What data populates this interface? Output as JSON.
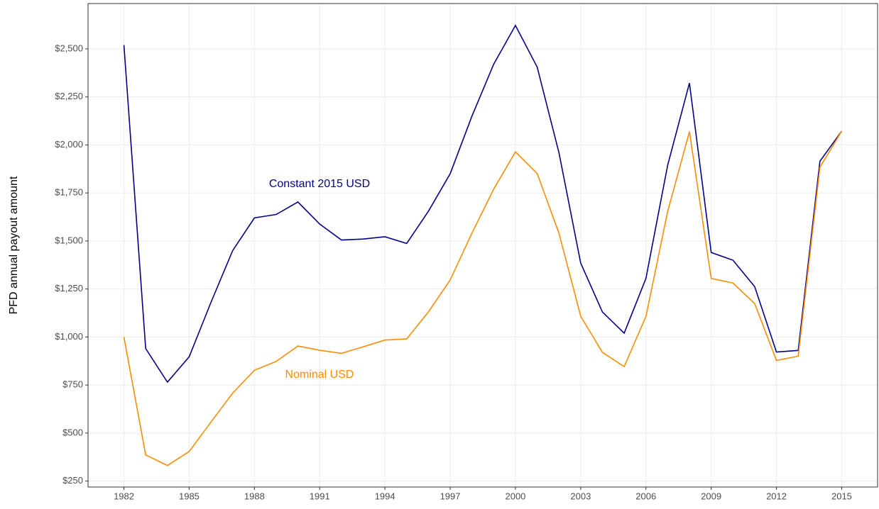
{
  "chart_data": {
    "type": "line",
    "y_label": "PFD annual payout amount",
    "x": [
      1982,
      1983,
      1984,
      1985,
      1986,
      1987,
      1988,
      1989,
      1990,
      1991,
      1992,
      1993,
      1994,
      1995,
      1996,
      1997,
      1998,
      1999,
      2000,
      2001,
      2002,
      2003,
      2004,
      2005,
      2006,
      2007,
      2008,
      2009,
      2010,
      2011,
      2012,
      2013,
      2014,
      2015
    ],
    "series": [
      {
        "name": "Constant 2015 USD",
        "color": "#00008b",
        "values": [
          2520,
          940,
          765,
          897,
          1180,
          1450,
          1620,
          1638,
          1703,
          1588,
          1505,
          1510,
          1522,
          1487,
          1655,
          1850,
          2150,
          2420,
          2622,
          2405,
          1960,
          1385,
          1130,
          1020,
          1305,
          1895,
          2322,
          1440,
          1400,
          1262,
          922,
          930,
          1915,
          2072
        ]
      },
      {
        "name": "Nominal USD",
        "color": "#ff8c00",
        "values": [
          1000,
          386,
          331,
          404,
          557,
          708,
          827,
          873,
          953,
          931,
          915,
          949,
          984,
          990,
          1131,
          1297,
          1541,
          1770,
          1964,
          1851,
          1541,
          1108,
          920,
          846,
          1107,
          1654,
          2069,
          1305,
          1281,
          1174,
          878,
          900,
          1884,
          2072
        ]
      }
    ],
    "xlim": [
      1980.35,
      2016.65
    ],
    "xticks": [
      1982,
      1985,
      1988,
      1991,
      1994,
      1997,
      2000,
      2003,
      2006,
      2009,
      2012,
      2015
    ],
    "ylim": [
      219,
      2736
    ],
    "yticks": [
      {
        "value": 250,
        "label": "$250"
      },
      {
        "value": 500,
        "label": "$500"
      },
      {
        "value": 750,
        "label": "$750"
      },
      {
        "value": 1000,
        "label": "$1,000"
      },
      {
        "value": 1250,
        "label": "$1,250"
      },
      {
        "value": 1500,
        "label": "$1,500"
      },
      {
        "value": 1750,
        "label": "$1,750"
      },
      {
        "value": 2000,
        "label": "$2,000"
      },
      {
        "value": 2250,
        "label": "$2,250"
      },
      {
        "value": 2500,
        "label": "$2,500"
      }
    ],
    "grid": true
  }
}
